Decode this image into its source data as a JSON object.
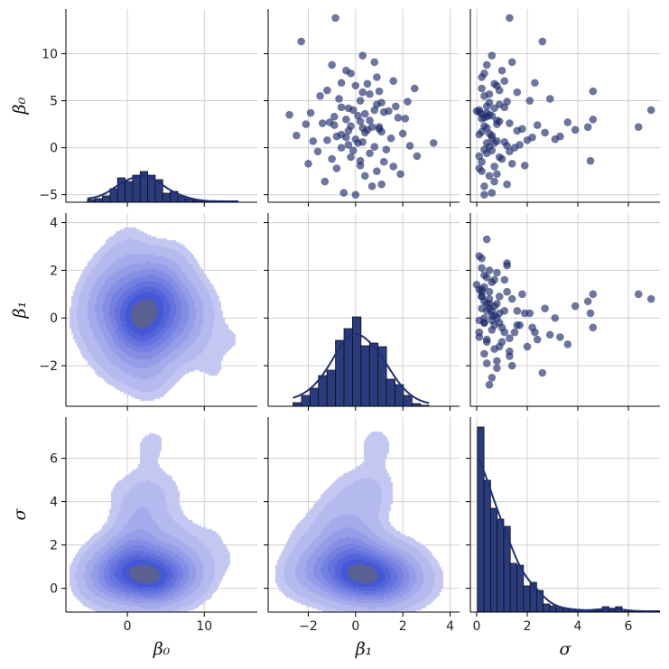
{
  "chart_data": {
    "type": "pairplot",
    "variables": [
      {
        "key": "beta0",
        "label": "β₀",
        "lim": [
          -8,
          16.9
        ],
        "ylim": [
          -5.8,
          14.75
        ],
        "ticks": [
          0,
          10
        ],
        "yticks": [
          -5,
          0,
          5,
          10
        ]
      },
      {
        "key": "beta1",
        "label": "β₁",
        "lim": [
          -3.7,
          4.4
        ],
        "ylim": [
          -3.7,
          4.4
        ],
        "ticks": [
          -2,
          0,
          2,
          4
        ],
        "yticks": [
          -2,
          0,
          2,
          4
        ]
      },
      {
        "key": "sigma",
        "label": "σ",
        "lim": [
          -0.25,
          7.25
        ],
        "ylim": [
          -1.1,
          7.9
        ],
        "ticks": [
          0,
          2,
          4,
          6
        ],
        "yticks": [
          0,
          2,
          4,
          6
        ]
      }
    ],
    "upper": "scatter",
    "lower": "kde (filled)",
    "diag": "histogram + kde",
    "grid": true,
    "colors": {
      "points": "#1f2d6b",
      "bars": "#2a3c7e",
      "bar_edge": "#111111",
      "kde_line": "#1f2f78",
      "kde_low": "#c4c7f1",
      "kde_high": "#4457d6",
      "kde_peak": "#5a6192",
      "grid": "#d0d0d0"
    },
    "histograms": {
      "beta0": {
        "bin_start": -5.2,
        "bin_width": 0.98,
        "counts": [
          3,
          4,
          7,
          15,
          27,
          23,
          30,
          34,
          30,
          25,
          10,
          12,
          7,
          4,
          2,
          1,
          1,
          1,
          1,
          1
        ],
        "ylim": [
          0,
          214
        ]
      },
      "beta1": {
        "bin_start": -2.65,
        "bin_width": 0.36,
        "counts": [
          4,
          12,
          20,
          34,
          40,
          73,
          86,
          99,
          67,
          70,
          66,
          30,
          24,
          12,
          3,
          1
        ],
        "ylim": [
          0,
          214
        ]
      },
      "sigma": {
        "bin_start": 0.03,
        "bin_width": 0.26,
        "counts": [
          205,
          146,
          115,
          103,
          95,
          54,
          52,
          29,
          33,
          24,
          9,
          7,
          5,
          4,
          3,
          2,
          2,
          2,
          2,
          6,
          3,
          6,
          1,
          1,
          1,
          1,
          1,
          1,
          1
        ],
        "ylim": [
          0,
          216
        ]
      }
    },
    "samples": [
      [
        2.1,
        0.3,
        0.4
      ],
      [
        -1.5,
        1.2,
        0.2
      ],
      [
        4.3,
        -0.6,
        1.1
      ],
      [
        0.5,
        0.1,
        0.7
      ],
      [
        3.2,
        1.8,
        0.3
      ],
      [
        6.1,
        -1.2,
        0.9
      ],
      [
        -3.0,
        0.4,
        0.5
      ],
      [
        1.8,
        -0.3,
        1.6
      ],
      [
        7.5,
        0.9,
        0.2
      ],
      [
        -0.4,
        -1.6,
        1.3
      ],
      [
        2.9,
        0.6,
        0.8
      ],
      [
        5.0,
        0.2,
        2.1
      ],
      [
        -2.2,
        -0.8,
        0.1
      ],
      [
        1.0,
        1.5,
        0.6
      ],
      [
        3.7,
        -1.9,
        0.4
      ],
      [
        8.2,
        -0.4,
        1.0
      ],
      [
        -4.1,
        0.7,
        0.3
      ],
      [
        0.2,
        2.3,
        1.2
      ],
      [
        4.8,
        1.1,
        0.5
      ],
      [
        2.4,
        -0.9,
        2.4
      ],
      [
        6.8,
        0.5,
        0.7
      ],
      [
        -1.0,
        -0.2,
        0.9
      ],
      [
        3.1,
        2.1,
        0.2
      ],
      [
        1.3,
        -2.5,
        0.6
      ],
      [
        9.1,
        0.8,
        1.4
      ],
      [
        -2.8,
        1.9,
        0.8
      ],
      [
        0.9,
        0.0,
        3.1
      ],
      [
        5.5,
        -1.5,
        0.3
      ],
      [
        2.0,
        1.0,
        1.8
      ],
      [
        -0.6,
        0.6,
        0.4
      ],
      [
        4.0,
        -0.1,
        0.1
      ],
      [
        7.1,
        1.6,
        1.1
      ],
      [
        -3.6,
        -1.3,
        0.7
      ],
      [
        1.6,
        0.4,
        2.7
      ],
      [
        3.5,
        -2.8,
        0.5
      ],
      [
        0.0,
        -0.6,
        1.5
      ],
      [
        6.3,
        2.5,
        0.2
      ],
      [
        -1.9,
        0.2,
        1.9
      ],
      [
        2.7,
        -1.1,
        3.6
      ],
      [
        4.6,
        0.9,
        0.9
      ],
      [
        8.8,
        -1.0,
        0.4
      ],
      [
        -0.2,
        1.3,
        0.3
      ],
      [
        1.1,
        -0.4,
        2.2
      ],
      [
        5.9,
        0.3,
        1.6
      ],
      [
        -4.8,
        -0.5,
        0.6
      ],
      [
        3.9,
        1.4,
        0.0
      ],
      [
        0.7,
        -1.8,
        0.8
      ],
      [
        2.2,
        0.7,
        4.4
      ],
      [
        7.9,
        -0.2,
        0.3
      ],
      [
        -1.2,
        -1.0,
        1.0
      ],
      [
        3.4,
        0.1,
        0.6
      ],
      [
        1.5,
        2.0,
        0.5
      ],
      [
        5.2,
        -0.7,
        2.9
      ],
      [
        -2.5,
        0.9,
        0.2
      ],
      [
        0.3,
        -0.3,
        1.7
      ],
      [
        4.4,
        1.7,
        0.4
      ],
      [
        2.6,
        -1.4,
        1.3
      ],
      [
        6.6,
        0.0,
        0.8
      ],
      [
        -0.9,
        2.6,
        0.1
      ],
      [
        1.9,
        0.5,
        3.9
      ],
      [
        13.8,
        -0.85,
        1.3
      ],
      [
        11.3,
        -2.3,
        2.6
      ],
      [
        4.0,
        0.8,
        6.9
      ],
      [
        2.2,
        1.0,
        6.4
      ],
      [
        0.5,
        3.3,
        0.4
      ],
      [
        3.0,
        -0.4,
        4.6
      ],
      [
        -1.4,
        0.2,
        4.5
      ],
      [
        6.0,
        1.0,
        4.6
      ],
      [
        1.2,
        -0.8,
        3.3
      ],
      [
        -3.9,
        1.1,
        1.2
      ],
      [
        2.3,
        -0.2,
        0.3
      ],
      [
        3.6,
        0.4,
        0.2
      ],
      [
        0.1,
        0.8,
        0.5
      ],
      [
        1.4,
        -0.6,
        0.1
      ],
      [
        2.8,
        0.2,
        0.9
      ],
      [
        -0.3,
        -0.1,
        0.6
      ],
      [
        4.2,
        -0.3,
        0.7
      ],
      [
        1.7,
        1.1,
        0.2
      ],
      [
        3.3,
        -0.9,
        0.4
      ],
      [
        0.6,
        0.3,
        1.1
      ],
      [
        5.7,
        0.6,
        0.5
      ],
      [
        -5.0,
        0.0,
        0.3
      ],
      [
        2.5,
        -2.1,
        0.8
      ],
      [
        9.8,
        0.3,
        0.6
      ],
      [
        -1.7,
        -2.0,
        1.4
      ],
      [
        4.9,
        2.2,
        1.2
      ],
      [
        0.8,
        -1.2,
        2.0
      ],
      [
        3.8,
        1.2,
        0.1
      ],
      [
        6.9,
        -0.6,
        2.3
      ],
      [
        -2.0,
        1.6,
        0.7
      ]
    ]
  }
}
